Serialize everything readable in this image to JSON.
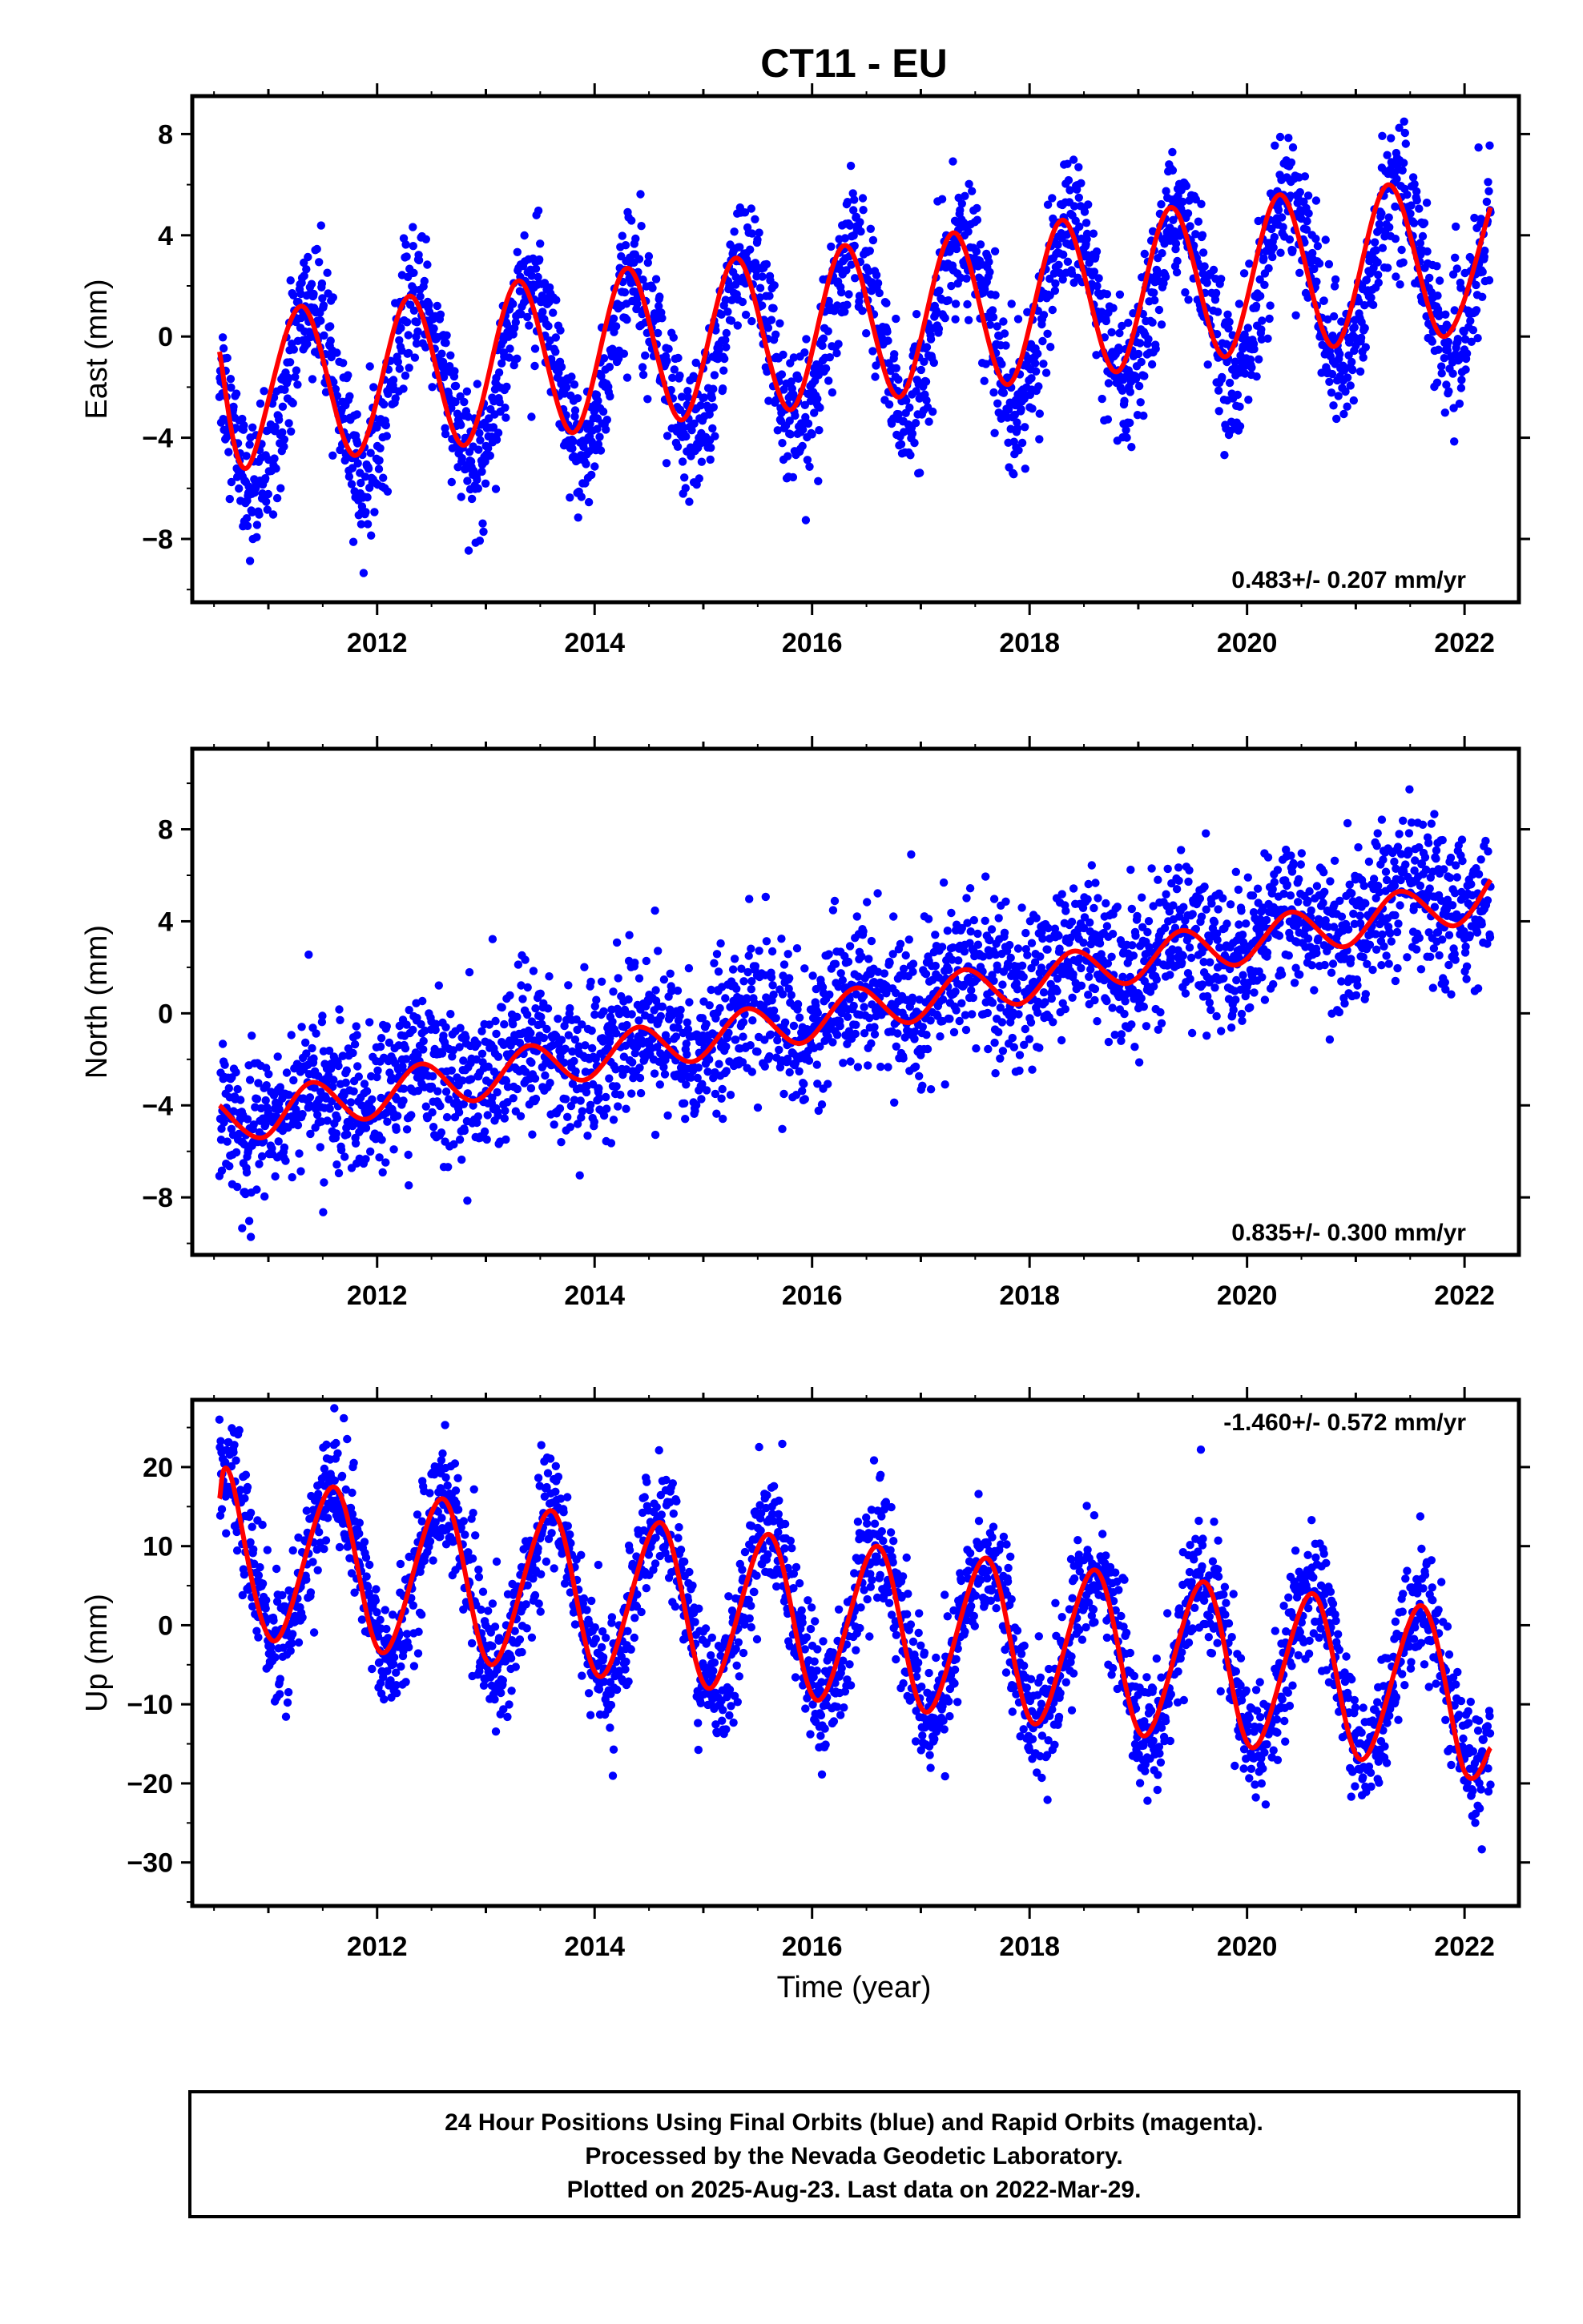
{
  "title": "CT11 - EU",
  "xlabel": "Time (year)",
  "footer": {
    "line1": "24 Hour Positions Using Final Orbits (blue) and Rapid Orbits (magenta).",
    "line2": "Processed by the Nevada Geodetic Laboratory.",
    "line3": "Plotted on 2025-Aug-23. Last data on 2022-Mar-29."
  },
  "colors": {
    "observations": "#0000ff",
    "model": "#ff0000",
    "axes": "#000000"
  },
  "chart_data": [
    {
      "type": "scatter",
      "ylabel": "East (mm)",
      "rate_label": "0.483+/- 0.207 mm/yr",
      "rate_placement": "bottom-right",
      "xlim": [
        2010.3,
        2022.5
      ],
      "ylim": [
        -10.5,
        9.5
      ],
      "xticks": [
        2012,
        2014,
        2016,
        2018,
        2020,
        2022
      ],
      "xtick_labels": [
        "2012",
        "2014",
        "2016",
        "2018",
        "2020",
        "2022"
      ],
      "yticks": [
        -8,
        -4,
        0,
        4,
        8
      ],
      "ytick_labels": [
        "−8",
        "−4",
        "0",
        "4",
        "8"
      ],
      "grid": false,
      "series": [
        {
          "role": "daily positions",
          "color": "#0000ff",
          "data_range": [
            2010.55,
            2022.24
          ],
          "model": {
            "offset": -2.75,
            "rate": 0.483,
            "amplitude": 3.5,
            "peak_phase": 0.38
          },
          "scatter_sd": 1.3
        },
        {
          "role": "model fit",
          "color": "#ff0000",
          "points": [
            [
              2010.55,
              -0.6
            ],
            [
              2010.8,
              -5.2
            ],
            [
              2011.3,
              1.2
            ],
            [
              2011.8,
              -4.7
            ],
            [
              2012.3,
              1.6
            ],
            [
              2012.8,
              -4.3
            ],
            [
              2013.3,
              2.2
            ],
            [
              2013.8,
              -3.8
            ],
            [
              2014.3,
              2.7
            ],
            [
              2014.8,
              -3.3
            ],
            [
              2015.3,
              3.1
            ],
            [
              2015.8,
              -2.9
            ],
            [
              2016.3,
              3.6
            ],
            [
              2016.8,
              -2.4
            ],
            [
              2017.3,
              4.1
            ],
            [
              2017.8,
              -1.9
            ],
            [
              2018.3,
              4.6
            ],
            [
              2018.8,
              -1.4
            ],
            [
              2019.3,
              5.1
            ],
            [
              2019.8,
              -0.8
            ],
            [
              2020.3,
              5.6
            ],
            [
              2020.8,
              -0.4
            ],
            [
              2021.3,
              6.0
            ],
            [
              2021.8,
              0.0
            ],
            [
              2022.24,
              5.1
            ]
          ]
        }
      ]
    },
    {
      "type": "scatter",
      "ylabel": "North (mm)",
      "rate_label": "0.835+/- 0.300 mm/yr",
      "rate_placement": "bottom-right",
      "xlim": [
        2010.3,
        2022.5
      ],
      "ylim": [
        -10.5,
        11.5
      ],
      "xticks": [
        2012,
        2014,
        2016,
        2018,
        2020,
        2022
      ],
      "xtick_labels": [
        "2012",
        "2014",
        "2016",
        "2018",
        "2020",
        "2022"
      ],
      "yticks": [
        -8,
        -4,
        0,
        4,
        8
      ],
      "ytick_labels": [
        "−8",
        "−4",
        "0",
        "4",
        "8"
      ],
      "grid": false,
      "series": [
        {
          "role": "daily positions",
          "color": "#0000ff",
          "data_range": [
            2010.55,
            2022.24
          ],
          "model": {
            "offset": -4.6,
            "rate": 0.835,
            "amplitude": 0.7,
            "peak_phase": 0.4
          },
          "scatter_sd": 1.6
        },
        {
          "role": "model fit",
          "color": "#ff0000",
          "points": [
            [
              2010.55,
              -4.0
            ],
            [
              2010.95,
              -5.4
            ],
            [
              2011.4,
              -3.0
            ],
            [
              2011.9,
              -4.6
            ],
            [
              2012.4,
              -2.2
            ],
            [
              2012.9,
              -3.8
            ],
            [
              2013.4,
              -1.4
            ],
            [
              2013.9,
              -2.9
            ],
            [
              2014.4,
              -0.6
            ],
            [
              2014.9,
              -2.1
            ],
            [
              2015.4,
              0.2
            ],
            [
              2015.9,
              -1.3
            ],
            [
              2016.4,
              1.1
            ],
            [
              2016.9,
              -0.4
            ],
            [
              2017.4,
              1.9
            ],
            [
              2017.9,
              0.4
            ],
            [
              2018.4,
              2.7
            ],
            [
              2018.9,
              1.3
            ],
            [
              2019.4,
              3.6
            ],
            [
              2019.9,
              2.1
            ],
            [
              2020.4,
              4.4
            ],
            [
              2020.9,
              2.9
            ],
            [
              2021.4,
              5.3
            ],
            [
              2021.9,
              3.8
            ],
            [
              2022.24,
              5.8
            ]
          ]
        }
      ]
    },
    {
      "type": "scatter",
      "ylabel": "Up (mm)",
      "rate_label": "-1.460+/- 0.572 mm/yr",
      "rate_placement": "top-right",
      "xlim": [
        2010.3,
        2022.5
      ],
      "ylim": [
        -35.5,
        28.5
      ],
      "xticks": [
        2012,
        2014,
        2016,
        2018,
        2020,
        2022
      ],
      "xtick_labels": [
        "2012",
        "2014",
        "2016",
        "2018",
        "2020",
        "2022"
      ],
      "yticks": [
        -30,
        -20,
        -10,
        0,
        10,
        20
      ],
      "ytick_labels": [
        "−30",
        "−20",
        "−10",
        "0",
        "10",
        "20"
      ],
      "grid": false,
      "series": [
        {
          "role": "daily positions",
          "color": "#0000ff",
          "data_range": [
            2010.55,
            2022.24
          ],
          "model": {
            "offset": 8.8,
            "rate": -1.46,
            "amplitude": 10.5,
            "peak_phase": 0.6
          },
          "scatter_sd": 3.8
        },
        {
          "role": "model fit",
          "color": "#ff0000",
          "points": [
            [
              2010.55,
              16.0
            ],
            [
              2010.65,
              19.0
            ],
            [
              2011.05,
              -2.0
            ],
            [
              2011.6,
              17.5
            ],
            [
              2012.05,
              -3.5
            ],
            [
              2012.6,
              16.0
            ],
            [
              2013.05,
              -5.0
            ],
            [
              2013.6,
              14.5
            ],
            [
              2014.05,
              -6.5
            ],
            [
              2014.6,
              13.0
            ],
            [
              2015.05,
              -8.0
            ],
            [
              2015.6,
              11.5
            ],
            [
              2016.05,
              -9.5
            ],
            [
              2016.6,
              10.0
            ],
            [
              2017.05,
              -11.0
            ],
            [
              2017.6,
              8.5
            ],
            [
              2018.05,
              -12.5
            ],
            [
              2018.6,
              7.0
            ],
            [
              2019.05,
              -14.0
            ],
            [
              2019.6,
              5.5
            ],
            [
              2020.05,
              -15.5
            ],
            [
              2020.6,
              4.0
            ],
            [
              2021.05,
              -17.0
            ],
            [
              2021.6,
              2.5
            ],
            [
              2022.0,
              -18.5
            ],
            [
              2022.24,
              -15.5
            ]
          ]
        }
      ]
    }
  ]
}
